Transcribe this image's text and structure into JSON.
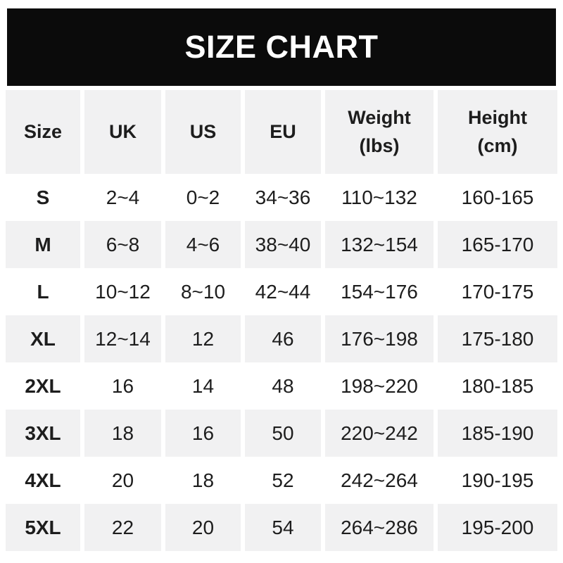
{
  "chart_data": {
    "type": "table",
    "title": "SIZE CHART",
    "columns": [
      "Size",
      "UK",
      "US",
      "EU",
      "Weight\n(lbs)",
      "Height\n(cm)"
    ],
    "rows": [
      [
        "S",
        "2~4",
        "0~2",
        "34~36",
        "110~132",
        "160-165"
      ],
      [
        "M",
        "6~8",
        "4~6",
        "38~40",
        "132~154",
        "165-170"
      ],
      [
        "L",
        "10~12",
        "8~10",
        "42~44",
        "154~176",
        "170-175"
      ],
      [
        "XL",
        "12~14",
        "12",
        "46",
        "176~198",
        "175-180"
      ],
      [
        "2XL",
        "16",
        "14",
        "48",
        "198~220",
        "180-185"
      ],
      [
        "3XL",
        "18",
        "16",
        "50",
        "220~242",
        "185-190"
      ],
      [
        "4XL",
        "20",
        "18",
        "52",
        "242~264",
        "190-195"
      ],
      [
        "5XL",
        "22",
        "20",
        "54",
        "264~286",
        "195-200"
      ]
    ],
    "layout": {
      "header_background": "alternate-gray",
      "row_striping": "white-gray-alternating",
      "grid": "white-column-gaps"
    }
  },
  "colors": {
    "banner_bg": "#0b0b0b",
    "banner_text": "#ffffff",
    "row_alt_bg": "#f1f1f2",
    "row_bg": "#ffffff",
    "text": "#1d1d1d"
  }
}
